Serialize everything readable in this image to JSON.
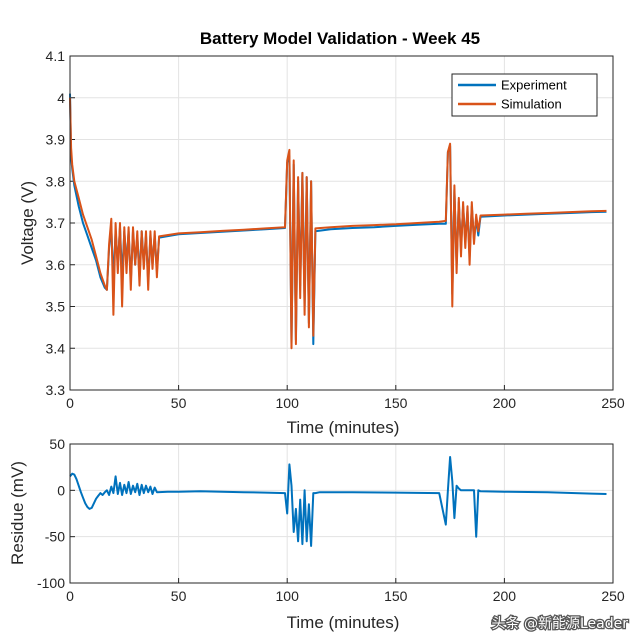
{
  "watermark": "头条 @新能源Leader",
  "chart_data": [
    {
      "type": "line",
      "title": "Battery Model Validation - Week 45",
      "xlabel": "Time (minutes)",
      "ylabel": "Voltage (V)",
      "xlim": [
        0,
        250
      ],
      "ylim": [
        3.3,
        4.1
      ],
      "xticks": [
        "0",
        "50",
        "100",
        "150",
        "200",
        "250"
      ],
      "yticks": [
        "3.3",
        "3.4",
        "3.5",
        "3.6",
        "3.7",
        "3.8",
        "3.9",
        "4",
        "4.1"
      ],
      "grid": true,
      "legend_position": "top-right",
      "series": [
        {
          "name": "Experiment",
          "color": "#0072BD",
          "x": [
            0,
            0.5,
            1,
            2,
            4,
            6,
            8,
            10,
            12,
            14,
            16,
            17,
            18,
            19,
            20,
            21,
            22,
            23,
            24,
            25,
            26,
            27,
            28,
            29,
            30,
            31,
            32,
            33,
            34,
            35,
            36,
            37,
            38,
            39,
            40,
            41,
            50,
            60,
            70,
            80,
            90,
            99,
            100,
            101,
            102,
            103,
            104,
            105,
            106,
            107,
            108,
            109,
            110,
            111,
            112,
            113,
            120,
            130,
            140,
            150,
            160,
            170,
            173,
            174,
            175,
            176,
            177,
            178,
            179,
            180,
            181,
            182,
            183,
            184,
            185,
            186,
            187,
            188,
            189,
            200,
            210,
            220,
            230,
            240,
            247
          ],
          "y": [
            4.01,
            3.86,
            3.83,
            3.79,
            3.74,
            3.7,
            3.67,
            3.64,
            3.61,
            3.57,
            3.545,
            3.54,
            3.64,
            3.69,
            3.56,
            3.68,
            3.6,
            3.69,
            3.57,
            3.68,
            3.6,
            3.68,
            3.56,
            3.68,
            3.6,
            3.67,
            3.57,
            3.68,
            3.6,
            3.67,
            3.56,
            3.67,
            3.6,
            3.67,
            3.585,
            3.665,
            3.673,
            3.676,
            3.679,
            3.682,
            3.685,
            3.688,
            3.845,
            3.86,
            3.41,
            3.84,
            3.42,
            3.8,
            3.55,
            3.82,
            3.5,
            3.81,
            3.46,
            3.8,
            3.41,
            3.68,
            3.685,
            3.688,
            3.69,
            3.693,
            3.696,
            3.698,
            3.698,
            3.87,
            3.885,
            3.53,
            3.78,
            3.6,
            3.75,
            3.64,
            3.74,
            3.66,
            3.73,
            3.62,
            3.74,
            3.66,
            3.71,
            3.67,
            3.715,
            3.718,
            3.72,
            3.722,
            3.724,
            3.726,
            3.727
          ]
        },
        {
          "name": "Simulation",
          "color": "#D95319",
          "x": [
            0,
            0.5,
            1,
            2,
            4,
            6,
            8,
            10,
            12,
            14,
            16,
            17,
            18,
            19,
            20,
            21,
            22,
            23,
            24,
            25,
            26,
            27,
            28,
            29,
            30,
            31,
            32,
            33,
            34,
            35,
            36,
            37,
            38,
            39,
            40,
            41,
            50,
            60,
            70,
            80,
            90,
            99,
            100,
            101,
            102,
            103,
            104,
            105,
            106,
            107,
            108,
            109,
            110,
            111,
            112,
            113,
            120,
            130,
            140,
            150,
            160,
            170,
            173,
            174,
            175,
            176,
            177,
            178,
            179,
            180,
            181,
            182,
            183,
            184,
            185,
            186,
            187,
            188,
            189,
            200,
            210,
            220,
            230,
            240,
            247
          ],
          "y": [
            4.0,
            3.88,
            3.84,
            3.8,
            3.76,
            3.72,
            3.69,
            3.66,
            3.62,
            3.58,
            3.55,
            3.54,
            3.65,
            3.71,
            3.48,
            3.7,
            3.58,
            3.7,
            3.5,
            3.69,
            3.58,
            3.69,
            3.54,
            3.69,
            3.6,
            3.68,
            3.55,
            3.68,
            3.59,
            3.68,
            3.54,
            3.68,
            3.59,
            3.68,
            3.57,
            3.668,
            3.675,
            3.678,
            3.681,
            3.684,
            3.687,
            3.69,
            3.85,
            3.875,
            3.4,
            3.85,
            3.41,
            3.81,
            3.52,
            3.82,
            3.48,
            3.81,
            3.45,
            3.8,
            3.43,
            3.687,
            3.69,
            3.693,
            3.695,
            3.697,
            3.7,
            3.703,
            3.705,
            3.87,
            3.89,
            3.5,
            3.79,
            3.58,
            3.76,
            3.62,
            3.75,
            3.64,
            3.74,
            3.6,
            3.75,
            3.65,
            3.72,
            3.68,
            3.718,
            3.72,
            3.722,
            3.724,
            3.726,
            3.728,
            3.729
          ]
        }
      ]
    },
    {
      "type": "line",
      "title": "",
      "xlabel": "Time (minutes)",
      "ylabel": "Residue (mV)",
      "xlim": [
        0,
        250
      ],
      "ylim": [
        -100,
        50
      ],
      "xticks": [
        "0",
        "50",
        "100",
        "150",
        "200",
        "250"
      ],
      "yticks": [
        "-100",
        "-50",
        "0",
        "50"
      ],
      "grid": true,
      "series": [
        {
          "name": "Residue",
          "color": "#0072BD",
          "x": [
            0,
            1,
            2,
            3,
            4,
            5,
            6,
            7,
            8,
            9,
            10,
            11,
            12,
            13,
            14,
            15,
            16,
            17,
            18,
            19,
            20,
            21,
            22,
            23,
            24,
            25,
            26,
            27,
            28,
            29,
            30,
            31,
            32,
            33,
            34,
            35,
            36,
            37,
            38,
            39,
            40,
            45,
            50,
            60,
            70,
            80,
            90,
            99,
            100,
            101,
            102,
            103,
            104,
            105,
            106,
            107,
            108,
            109,
            110,
            111,
            112,
            113,
            115,
            130,
            150,
            170,
            173,
            174,
            175,
            176,
            177,
            178,
            179,
            180,
            186,
            187,
            188,
            189,
            200,
            220,
            240,
            247
          ],
          "y": [
            15,
            18,
            17,
            12,
            5,
            -2,
            -8,
            -14,
            -18,
            -20,
            -19,
            -14,
            -9,
            -6,
            -3,
            -5,
            -2,
            0,
            -5,
            4,
            -3,
            15,
            -4,
            8,
            -5,
            6,
            -3,
            9,
            -4,
            5,
            -2,
            7,
            -5,
            6,
            -3,
            5,
            -2,
            4,
            -4,
            3,
            -2,
            -1.5,
            -1.5,
            -1,
            -1.5,
            -2,
            -2.5,
            -3,
            -25,
            28,
            5,
            -45,
            -20,
            -55,
            -10,
            -58,
            0,
            -55,
            -15,
            -60,
            -3,
            -3,
            -2,
            -2,
            -2.5,
            -3,
            -37,
            0,
            36,
            10,
            -30,
            5,
            2,
            0,
            0,
            -50,
            0,
            -1,
            -1.5,
            -2,
            -3.5,
            -4
          ]
        }
      ]
    }
  ]
}
